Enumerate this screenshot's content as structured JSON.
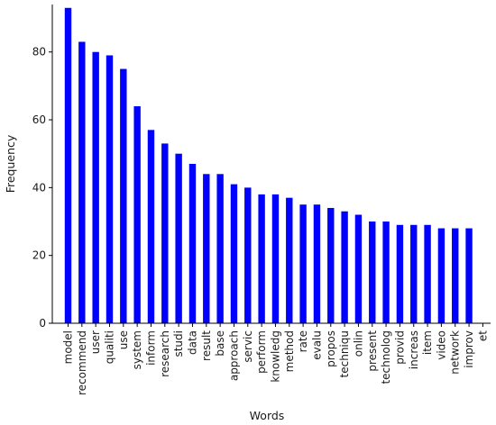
{
  "chart_data": {
    "type": "bar",
    "title": "",
    "xlabel": "Words",
    "ylabel": "Frequency",
    "ylim": [
      0,
      94
    ],
    "yticks": [
      0,
      20,
      40,
      60,
      80
    ],
    "grid": false,
    "legend": "none",
    "bar_color": "#0000ff",
    "categories": [
      "model",
      "recommend",
      "user",
      "qualiti",
      "use",
      "system",
      "inform",
      "research",
      "studi",
      "data",
      "result",
      "base",
      "approach",
      "servic",
      "perform",
      "knowledg",
      "method",
      "rate",
      "evalu",
      "propos",
      "techniqu",
      "onlin",
      "present",
      "technolog",
      "provid",
      "increas",
      "item",
      "video",
      "network",
      "improv",
      "et"
    ],
    "values": [
      93,
      83,
      80,
      79,
      75,
      64,
      57,
      53,
      50,
      47,
      44,
      44,
      41,
      40,
      38,
      38,
      37,
      35,
      35,
      34,
      33,
      32,
      30,
      30,
      29,
      29,
      29,
      28,
      28,
      28,
      0
    ]
  }
}
